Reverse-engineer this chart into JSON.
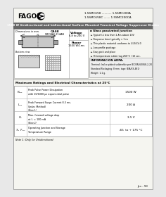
{
  "bg_color": "#e8e8e8",
  "page_bg": "#f5f5f0",
  "title_bar_color": "#666666",
  "title_text": "1500 W Unidirectional and bidirectional Surface Mounted Transient Voltage Suppressor Diodes",
  "title_text_color": "#ffffff",
  "logo_text": "FAGOR",
  "header_series": [
    "1.5SMC6V8 ........... 1.5SMC200A",
    "1.5SMC6V8C ....... 1.5SMC200CA"
  ],
  "case_label": "CASE",
  "case_sub": "SMC/DO-214AB",
  "voltage_label": "Voltage",
  "voltage_val": "6.8 to 200 V",
  "power_label": "Power",
  "power_val": "1500 W/1ms",
  "features_title": "Glass passivated junction",
  "features": [
    "Typical I₂t less than 1 A²s above 10V",
    "Response time typically < 1 ns",
    "Thin plastic material conforms to UL94-V-0",
    "Low profile package",
    "Easy pick and place",
    "Hi temperature solder tag 260°C / 10 sec."
  ],
  "info_title": "INFORMACION ADPA:",
  "info_lines": [
    "Terminal: Indice plated solderable per IEC/EN-60068-2-20",
    "Standard Packaging: 8 mm. tape (EIA-RS-481)",
    "Weight: 1.1 g."
  ],
  "table_title": "Maximum Ratings and Electrical Characteristics at 25°C",
  "table_rows": [
    {
      "sym": "Pₚₚₖ",
      "desc": "Peak Pulse Power Dissipation\nwith 10/1000 μs exponential pulse",
      "note": "",
      "value": "1500 W"
    },
    {
      "sym": "Iₚₚₖ",
      "desc": "Peak Forward Surge Current 8.3 ms.\n(Jedec Method)",
      "note": "Note 1",
      "value": "200 A"
    },
    {
      "sym": "Vₙ",
      "desc": "Max. forward voltage drop\nat Iₙ = 100 mA",
      "note": "Note 2",
      "value": "3.5 V"
    },
    {
      "sym": "Tⱼ, Tₛₜᵧ",
      "desc": "Operating Junction and Storage\nTemperature Range",
      "note": "",
      "value": "-65  to + 175 °C"
    }
  ],
  "footnote": "Note 1: Only for Unidirectional",
  "page_ref": "Jan - 93"
}
